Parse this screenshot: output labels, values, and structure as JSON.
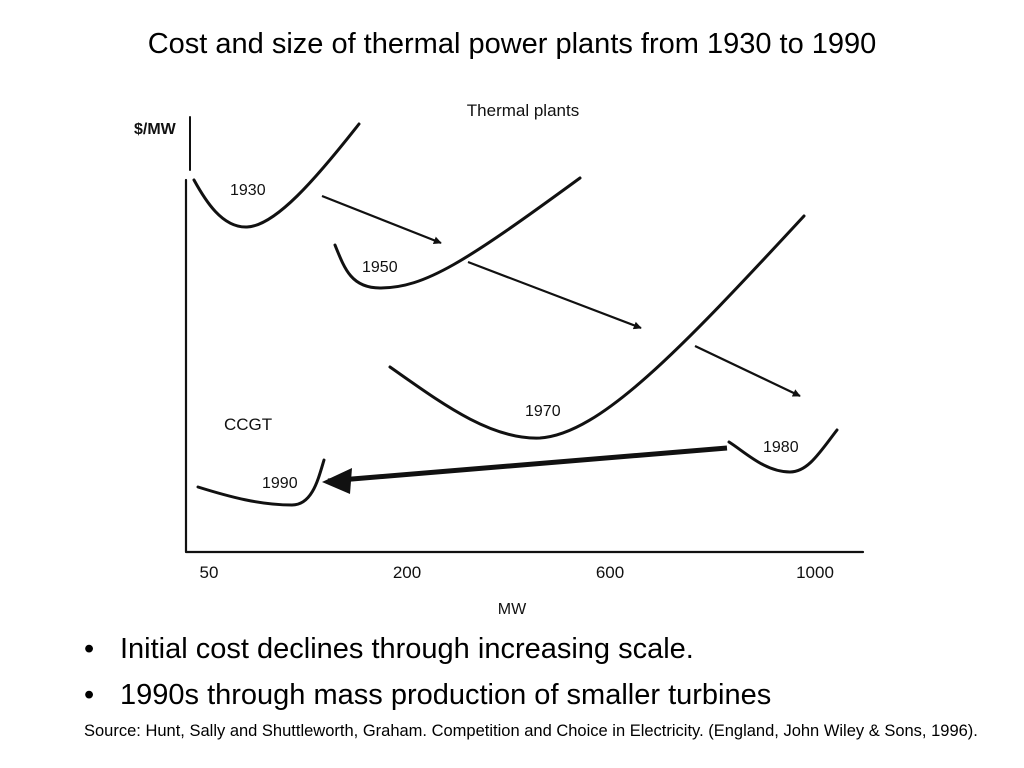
{
  "slide": {
    "title": "Cost and size of thermal power plants from 1930 to 1990",
    "bullets": [
      "Initial cost declines through increasing scale.",
      "1990s through mass production of smaller turbines"
    ],
    "bullet_glyph": "•",
    "source": "Source: Hunt, Sally and Shuttleworth, Graham. Competition and Choice in Electricity. (England, John Wiley & Sons, 1996)."
  },
  "chart_data": {
    "type": "line",
    "title": "Thermal plants",
    "xlabel": "MW",
    "ylabel": "$/MW",
    "x_ticks": [
      "50",
      "200",
      "600",
      "1000"
    ],
    "annotations": [
      "CCGT"
    ],
    "series": [
      {
        "name": "1930",
        "shape": "U-shaped cost curve",
        "min_at_mw": "between 50 and 200"
      },
      {
        "name": "1950",
        "shape": "U-shaped cost curve",
        "min_at_mw": "around 200"
      },
      {
        "name": "1970",
        "shape": "U-shaped cost curve",
        "min_at_mw": "between 200 and 600"
      },
      {
        "name": "1980",
        "shape": "U-shaped cost curve",
        "min_at_mw": "around 1000"
      },
      {
        "name": "1990",
        "shape": "U-shaped cost curve",
        "min_at_mw": "between 50 and 200"
      }
    ],
    "arrows": [
      {
        "from": "1930",
        "to": "1950"
      },
      {
        "from": "1950",
        "to": "1970"
      },
      {
        "from": "1970",
        "to": "1980"
      },
      {
        "from": "1980",
        "to": "1990"
      }
    ],
    "grid": false,
    "legend": "none"
  }
}
